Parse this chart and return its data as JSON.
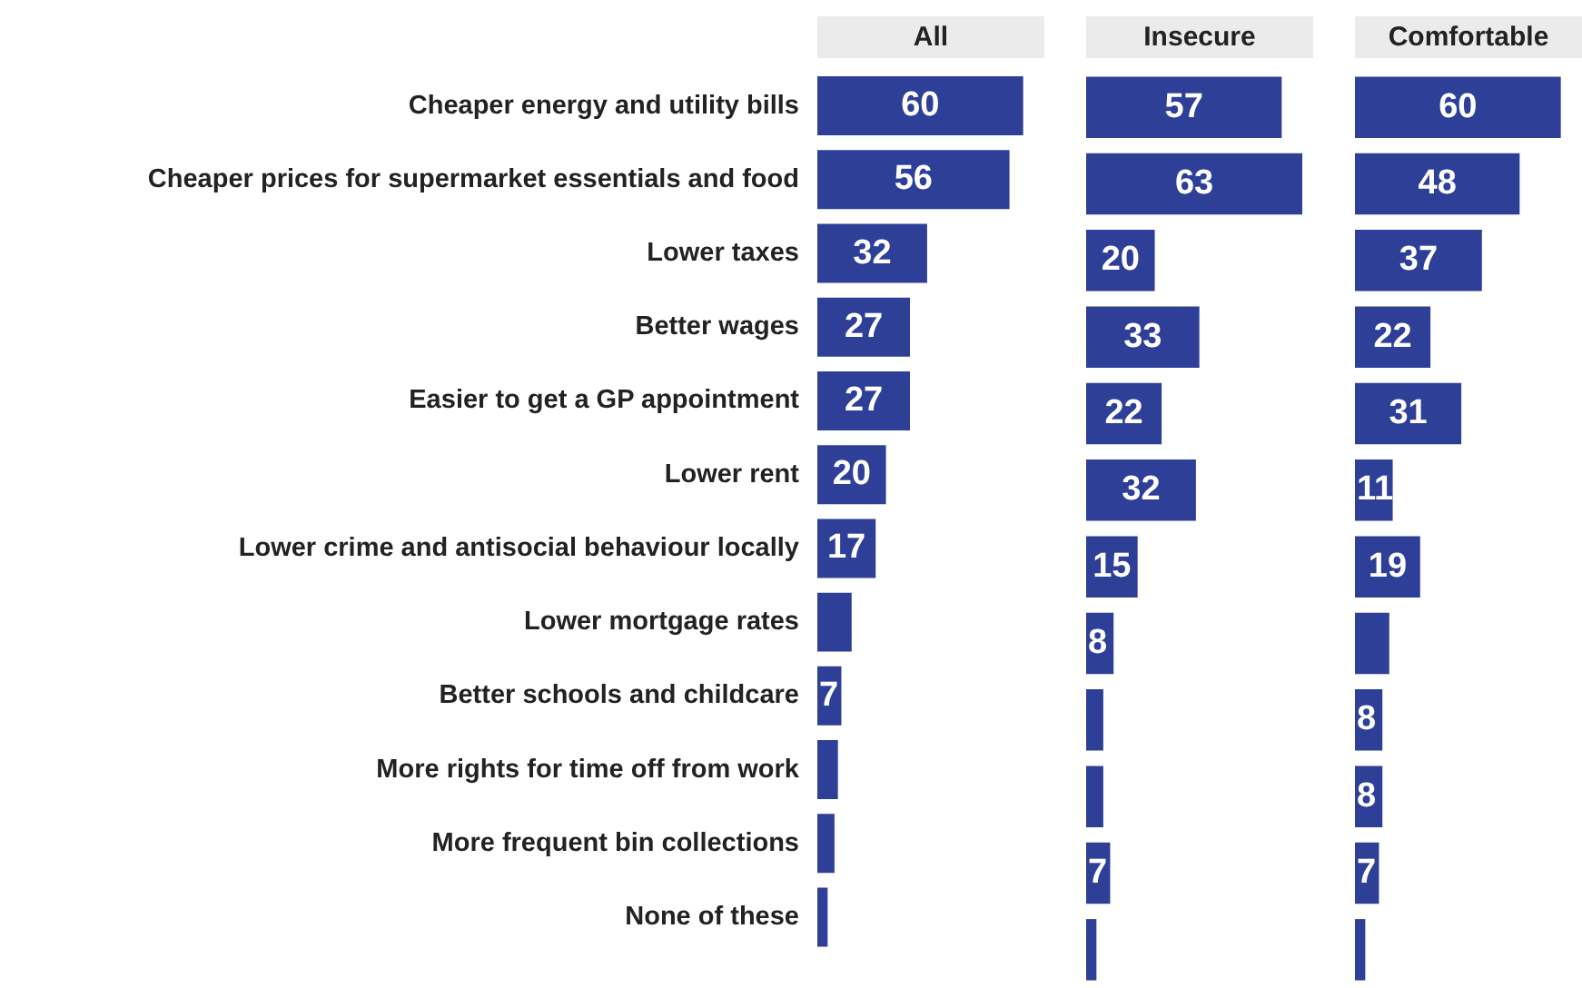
{
  "chart_data": [
    {
      "type": "bar",
      "title": "All",
      "orientation": "horizontal",
      "color": "#2e3f98",
      "tick_labels": "y",
      "categories": [
        "Cheaper energy and utility bills",
        "Cheaper prices for supermarket essentials and food",
        "Lower taxes",
        "Better wages",
        "Easier to get a GP appointment",
        "Lower rent",
        "Lower crime and antisocial behaviour locally",
        "Lower mortgage rates",
        "Better schools and childcare",
        "More rights for time off from work",
        "More frequent bin collections",
        "None of these"
      ],
      "values": [
        60,
        56,
        32,
        27,
        27,
        20,
        17,
        10,
        7,
        6,
        5,
        3
      ],
      "value_labels": [
        "60",
        "56",
        "32",
        "27",
        "27",
        "20",
        "17",
        null,
        "7",
        null,
        null,
        null
      ]
    },
    {
      "type": "bar",
      "title": "Insecure",
      "orientation": "horizontal",
      "color": "#2e3f98",
      "tick_labels": false,
      "categories": [
        null,
        null,
        null,
        null,
        null,
        null,
        null,
        null,
        null,
        null,
        null,
        null
      ],
      "values": [
        57,
        63,
        20,
        33,
        22,
        32,
        15,
        8,
        5,
        5,
        7,
        3
      ],
      "value_labels": [
        "57",
        "63",
        "20",
        "33",
        "22",
        "32",
        "15",
        "8",
        null,
        null,
        "7",
        null
      ]
    },
    {
      "type": "bar",
      "title": "Comfortable",
      "orientation": "horizontal",
      "color": "#2e3f98",
      "tick_labels": false,
      "categories": [
        null,
        null,
        null,
        null,
        null,
        null,
        null,
        null,
        null,
        null,
        null,
        null
      ],
      "values": [
        60,
        48,
        37,
        22,
        31,
        11,
        19,
        10,
        8,
        8,
        7,
        3
      ],
      "value_labels": [
        "60",
        "48",
        "37",
        "22",
        "31",
        "11",
        "19",
        null,
        "8",
        "8",
        "7",
        null
      ]
    }
  ]
}
